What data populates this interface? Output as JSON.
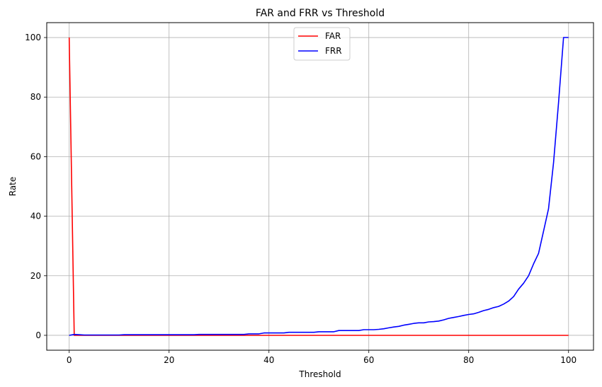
{
  "chart_data": {
    "type": "line",
    "title": "FAR and FRR vs Threshold",
    "xlabel": "Threshold",
    "ylabel": "Rate",
    "xlim": [
      -4.5,
      105
    ],
    "ylim": [
      -5,
      105
    ],
    "xticks": [
      0,
      20,
      40,
      60,
      80,
      100
    ],
    "yticks": [
      0,
      20,
      40,
      60,
      80,
      100
    ],
    "grid": true,
    "legend_position": "top-center",
    "series": [
      {
        "name": "FAR",
        "color": "#ff0000",
        "x": [
          0,
          1,
          2,
          100
        ],
        "y": [
          100,
          0,
          0,
          0
        ]
      },
      {
        "name": "FRR",
        "color": "#0000ff",
        "x": [
          0,
          1,
          2,
          3,
          10,
          11,
          25,
          26,
          35,
          36,
          38,
          39,
          43,
          44,
          49,
          50,
          53,
          54,
          58,
          59,
          61,
          62,
          63,
          64,
          65,
          66,
          67,
          68,
          69,
          70,
          71,
          72,
          73,
          74,
          75,
          76,
          77,
          78,
          79,
          80,
          81,
          82,
          83,
          84,
          85,
          86,
          87,
          88,
          89,
          90,
          91,
          92,
          93,
          94,
          95,
          96,
          97,
          98,
          99,
          100
        ],
        "y": [
          0,
          0.3,
          0.2,
          0.1,
          0.1,
          0.2,
          0.2,
          0.3,
          0.3,
          0.5,
          0.5,
          0.8,
          0.8,
          1.0,
          1.0,
          1.2,
          1.2,
          1.6,
          1.6,
          1.9,
          1.9,
          2.0,
          2.2,
          2.5,
          2.8,
          3.0,
          3.4,
          3.7,
          4.0,
          4.2,
          4.2,
          4.5,
          4.6,
          4.8,
          5.2,
          5.7,
          6.0,
          6.3,
          6.7,
          7.0,
          7.2,
          7.7,
          8.3,
          8.7,
          9.3,
          9.7,
          10.5,
          11.5,
          13.0,
          15.5,
          17.5,
          20.0,
          24.0,
          27.5,
          35.0,
          42.5,
          58.0,
          78.0,
          100.0,
          100.0
        ]
      }
    ]
  }
}
